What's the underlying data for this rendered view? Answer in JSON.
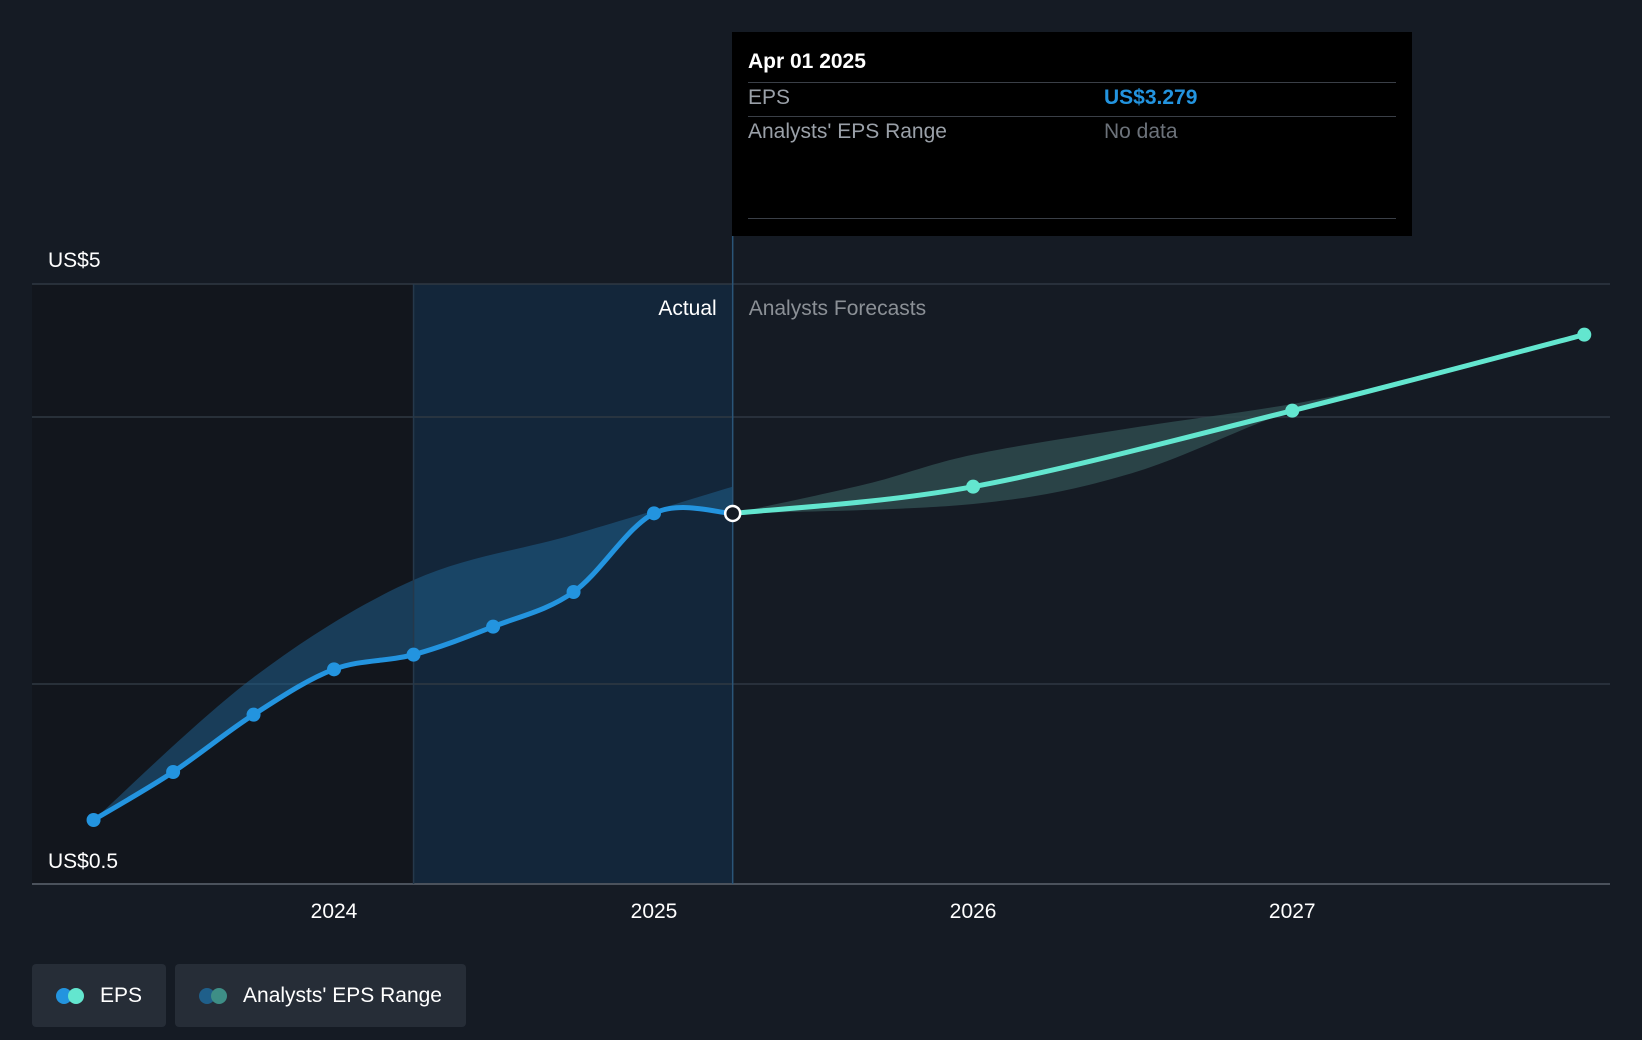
{
  "chart_data": {
    "type": "line",
    "x_ticks": [
      "2024",
      "2025",
      "2026",
      "2027"
    ],
    "y_labels": [
      "US$5",
      "US$0.5"
    ],
    "ylim": [
      0.5,
      5
    ],
    "section_labels": {
      "actual": "Actual",
      "forecast": "Analysts Forecasts"
    },
    "series": [
      {
        "name": "EPS",
        "points": [
          [
            "2023-04-01",
            0.98
          ],
          [
            "2023-07-01",
            1.34
          ],
          [
            "2023-10-01",
            1.77
          ],
          [
            "2024-01-01",
            2.11
          ],
          [
            "2024-04-01",
            2.22
          ],
          [
            "2024-07-01",
            2.43
          ],
          [
            "2024-10-01",
            2.69
          ],
          [
            "2025-01-01",
            3.28
          ],
          [
            "2025-04-01",
            3.279
          ]
        ]
      },
      {
        "name": "EPS",
        "forecast": true,
        "points": [
          [
            "2025-04-01",
            3.279
          ],
          [
            "2026-01-01",
            3.48
          ],
          [
            "2027-01-01",
            4.05
          ],
          [
            "2027-12-01",
            4.62
          ]
        ]
      }
    ],
    "range_band": {
      "name": "Analysts' EPS Range",
      "low": [
        [
          "2025-04-01",
          3.279
        ],
        [
          "2026-01-01",
          3.35
        ],
        [
          "2026-07-01",
          3.58
        ],
        [
          "2027-01-01",
          4.05
        ],
        [
          "2027-06-01",
          4.3
        ]
      ],
      "high": [
        [
          "2025-04-01",
          3.279
        ],
        [
          "2025-09-01",
          3.5
        ],
        [
          "2026-01-01",
          3.72
        ],
        [
          "2026-07-01",
          3.92
        ],
        [
          "2027-01-01",
          4.1
        ],
        [
          "2027-06-01",
          4.3
        ]
      ]
    },
    "actual_band": {
      "points": [
        [
          "2023-04-01",
          0.98
        ],
        [
          "2023-10-01",
          2.05
        ],
        [
          "2024-04-01",
          2.78
        ],
        [
          "2024-10-01",
          3.12
        ],
        [
          "2025-04-01",
          3.48
        ]
      ]
    },
    "colors": {
      "actual": "#2394df",
      "forecast": "#63e6cf",
      "range": "#2e4a4d",
      "highlight": "#13263a",
      "past_shade": "#12161d",
      "grid": "#2f3843",
      "axis": "#4b525c"
    }
  },
  "tooltip": {
    "date": "Apr 01 2025",
    "rows": [
      {
        "label": "EPS",
        "value": "US$3.279",
        "color": "#2394df"
      },
      {
        "label": "Analysts' EPS Range",
        "value": "No data",
        "color": "#6c727a"
      }
    ]
  },
  "legend": [
    {
      "label": "EPS",
      "icon": "two-dot-icon",
      "colors": [
        "#2394df",
        "#63e6cf"
      ]
    },
    {
      "label": "Analysts' EPS Range",
      "icon": "two-dot-icon",
      "colors": [
        "#1f5f8a",
        "#3e8e86"
      ]
    }
  ]
}
